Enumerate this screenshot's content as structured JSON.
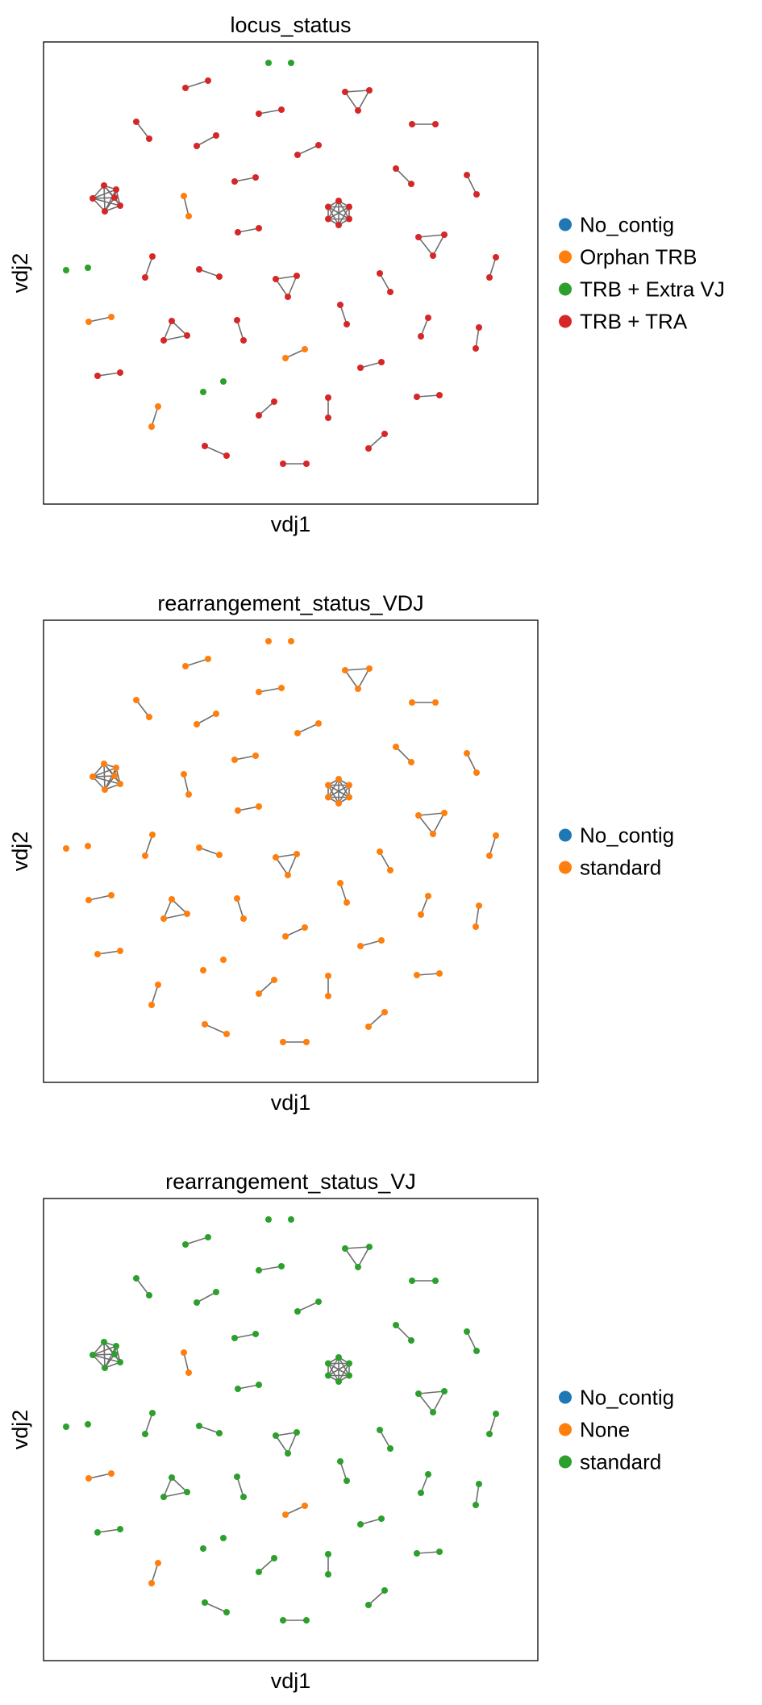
{
  "chart_data": [
    {
      "type": "scatter",
      "title": "locus_status",
      "xlabel": "vdj1",
      "ylabel": "vdj2",
      "grid": false,
      "legend_position": "right",
      "categories": [
        {
          "name": "No_contig",
          "color": "#1f77b4"
        },
        {
          "name": "Orphan TRB",
          "color": "#ff7f0e"
        },
        {
          "name": "TRB + Extra VJ",
          "color": "#2ca02c"
        },
        {
          "name": "TRB + TRA",
          "color": "#d62728"
        }
      ],
      "node_colors": {
        "g1": "#2ca02c",
        "g2": "#d62728",
        "g3": "#d62728",
        "g4": "#d62728",
        "g5": "#d62728",
        "g6": "#d62728",
        "g7": "#d62728",
        "g8": "#d62728",
        "g9": "#d62728",
        "g10": "#d62728",
        "g11": "#d62728",
        "g12": "#ff7f0e",
        "g13": "#d62728",
        "g14": "#d62728",
        "g15": "#d62728",
        "g16": "#d62728",
        "g17": "#d62728",
        "g18": "#d62728",
        "g19": "#2ca02c",
        "g20": "#d62728",
        "g21": "#d62728",
        "g22": "#d62728",
        "g23": "#d62728",
        "g24": "#d62728",
        "g25": "#ff7f0e",
        "g26": "#d62728",
        "g27": "#d62728",
        "g28": "#d62728",
        "g29": "#d62728",
        "g30": "#d62728",
        "g31": "#ff7f0e",
        "g32": "#d62728",
        "g33": "#d62728",
        "g34": "#2ca02c",
        "g35": "#ff7f0e",
        "g36": "#d62728",
        "g37": "#d62728",
        "g38": "#d62728",
        "g39": "#d62728",
        "g40": "#ff7f0e"
      }
    },
    {
      "type": "scatter",
      "title": "rearrangement_status_VDJ",
      "xlabel": "vdj1",
      "ylabel": "vdj2",
      "grid": false,
      "legend_position": "right",
      "categories": [
        {
          "name": "No_contig",
          "color": "#1f77b4"
        },
        {
          "name": "standard",
          "color": "#ff7f0e"
        }
      ],
      "node_colors": {
        "default": "#ff7f0e"
      }
    },
    {
      "type": "scatter",
      "title": "rearrangement_status_VJ",
      "xlabel": "vdj1",
      "ylabel": "vdj2",
      "grid": false,
      "legend_position": "right",
      "categories": [
        {
          "name": "No_contig",
          "color": "#1f77b4"
        },
        {
          "name": "None",
          "color": "#ff7f0e"
        },
        {
          "name": "standard",
          "color": "#2ca02c"
        }
      ],
      "node_colors": {
        "default": "#2ca02c",
        "g12": "#ff7f0e",
        "g25": "#ff7f0e",
        "g31": "#ff7f0e",
        "g35": "#ff7f0e",
        "g40": "#ff7f0e"
      }
    }
  ],
  "edge_color": "#6e6e6e"
}
